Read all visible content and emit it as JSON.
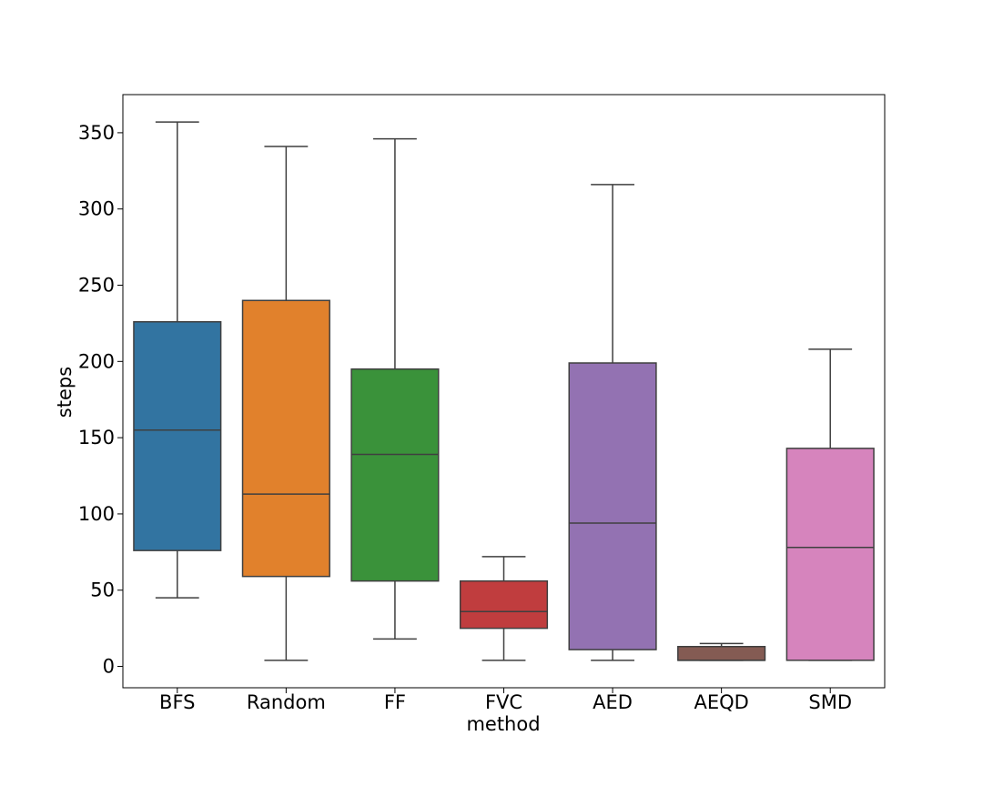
{
  "chart_data": {
    "type": "box",
    "title": "",
    "xlabel": "method",
    "ylabel": "steps",
    "ylim": [
      -14,
      375
    ],
    "yticks": [
      0,
      50,
      100,
      150,
      200,
      250,
      300,
      350
    ],
    "grid": false,
    "legend": "none",
    "series": [
      {
        "name": "BFS",
        "color": "#3274a1",
        "whisker_low": 45,
        "q1": 76,
        "median": 155,
        "q3": 226,
        "whisker_high": 357
      },
      {
        "name": "Random",
        "color": "#e1812c",
        "whisker_low": 4,
        "q1": 59,
        "median": 113,
        "q3": 240,
        "whisker_high": 341
      },
      {
        "name": "FF",
        "color": "#3a923a",
        "whisker_low": 18,
        "q1": 56,
        "median": 139,
        "q3": 195,
        "whisker_high": 346
      },
      {
        "name": "FVC",
        "color": "#c03d3e",
        "whisker_low": 4,
        "q1": 25,
        "median": 36,
        "q3": 56,
        "whisker_high": 72
      },
      {
        "name": "AED",
        "color": "#9372b2",
        "whisker_low": 4,
        "q1": 11,
        "median": 94,
        "q3": 199,
        "whisker_high": 316
      },
      {
        "name": "AEQD",
        "color": "#845b53",
        "whisker_low": 4,
        "q1": 4,
        "median": 4,
        "q3": 13,
        "whisker_high": 15
      },
      {
        "name": "SMD",
        "color": "#d684bd",
        "whisker_low": 4,
        "q1": 4,
        "median": 78,
        "q3": 143,
        "whisker_high": 208
      }
    ]
  }
}
